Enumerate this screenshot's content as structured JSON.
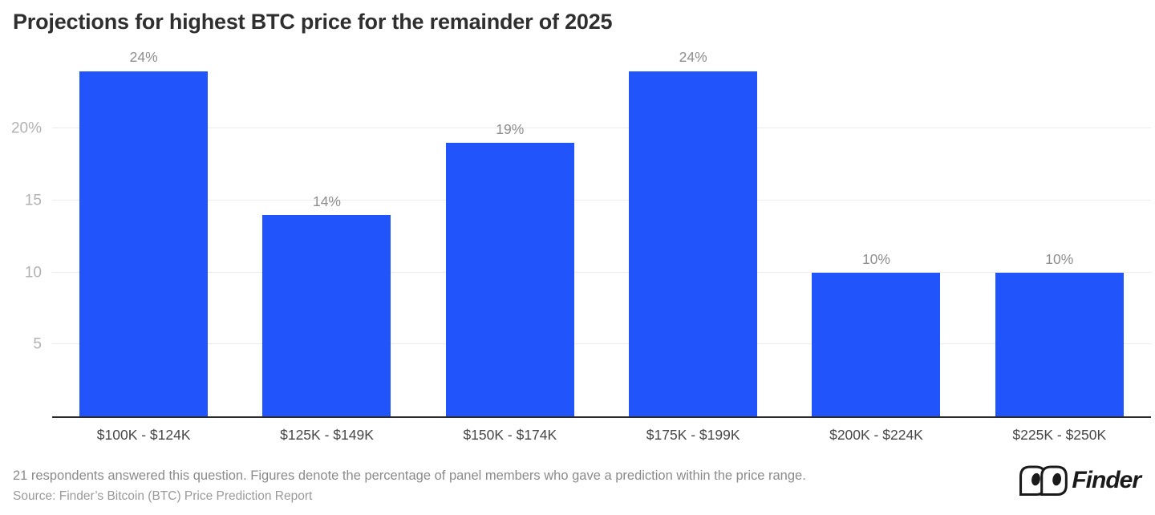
{
  "title": "Projections for highest BTC price for the remainder of 2025",
  "chart_data": {
    "type": "bar",
    "categories": [
      "$100K - $124K",
      "$125K - $149K",
      "$150K - $174K",
      "$175K - $199K",
      "$200K - $224K",
      "$225K - $250K"
    ],
    "values": [
      24,
      14,
      19,
      24,
      10,
      10
    ],
    "value_labels": [
      "24%",
      "14%",
      "19%",
      "24%",
      "10%",
      "10%"
    ],
    "yticks": [
      {
        "value": 5,
        "label": "5"
      },
      {
        "value": 10,
        "label": "10"
      },
      {
        "value": 15,
        "label": "15"
      },
      {
        "value": 20,
        "label": "20%"
      }
    ],
    "ylim": [
      0,
      25.7
    ],
    "title": "Projections for highest BTC price for the remainder of 2025",
    "xlabel": "",
    "ylabel": "",
    "grid": true,
    "legend_position": "none",
    "bar_color": "#2155FB",
    "axis_line_color": "#2b2b2b",
    "gridline_color": "#ececec"
  },
  "footer": {
    "note": "21 respondents answered this question. Figures denote the percentage of panel members who gave a prediction within the price range.",
    "source": "Source: Finder’s Bitcoin (BTC) Price Prediction Report"
  },
  "logo": {
    "text": "Finder",
    "icon": "finder-eyes-icon",
    "color": "#1a1a1a"
  }
}
